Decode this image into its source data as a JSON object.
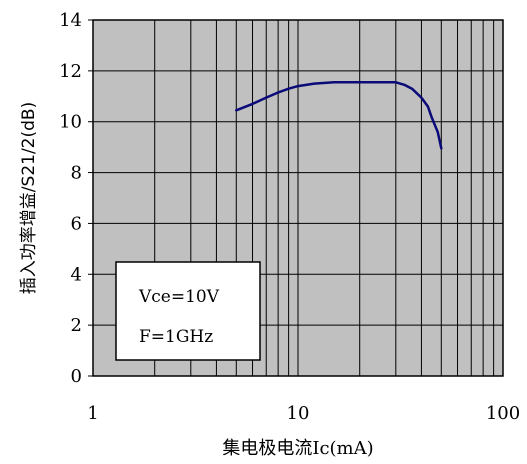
{
  "chart_data": {
    "type": "line",
    "xlabel": "集电极电流Ic(mA)",
    "ylabel": "插入功率增益/S21/2(dB)",
    "x_scale": "log",
    "xlim": [
      1,
      100
    ],
    "ylim": [
      0,
      14
    ],
    "x_ticks": [
      1,
      10,
      100
    ],
    "x_tick_labels": [
      "1",
      "10",
      "100"
    ],
    "y_ticks": [
      0,
      2,
      4,
      6,
      8,
      10,
      12,
      14
    ],
    "y_tick_labels": [
      "0",
      "2",
      "4",
      "6",
      "8",
      "10",
      "12",
      "14"
    ],
    "grid": true,
    "series": [
      {
        "x": [
          5,
          6,
          7,
          8,
          9,
          10,
          12,
          15,
          20,
          25,
          30,
          33,
          36,
          40,
          43,
          45,
          48,
          50
        ],
        "y": [
          10.45,
          10.7,
          10.95,
          11.15,
          11.3,
          11.4,
          11.5,
          11.55,
          11.55,
          11.55,
          11.55,
          11.45,
          11.3,
          10.95,
          10.6,
          10.15,
          9.6,
          8.95
        ],
        "color": "#0a0a78"
      }
    ],
    "annotations": [
      "Vce=10V",
      "F=1GHz"
    ]
  },
  "colors": {
    "plot_background": "#c0c0c0",
    "grid": "#000000",
    "line": "#0a0a78"
  }
}
